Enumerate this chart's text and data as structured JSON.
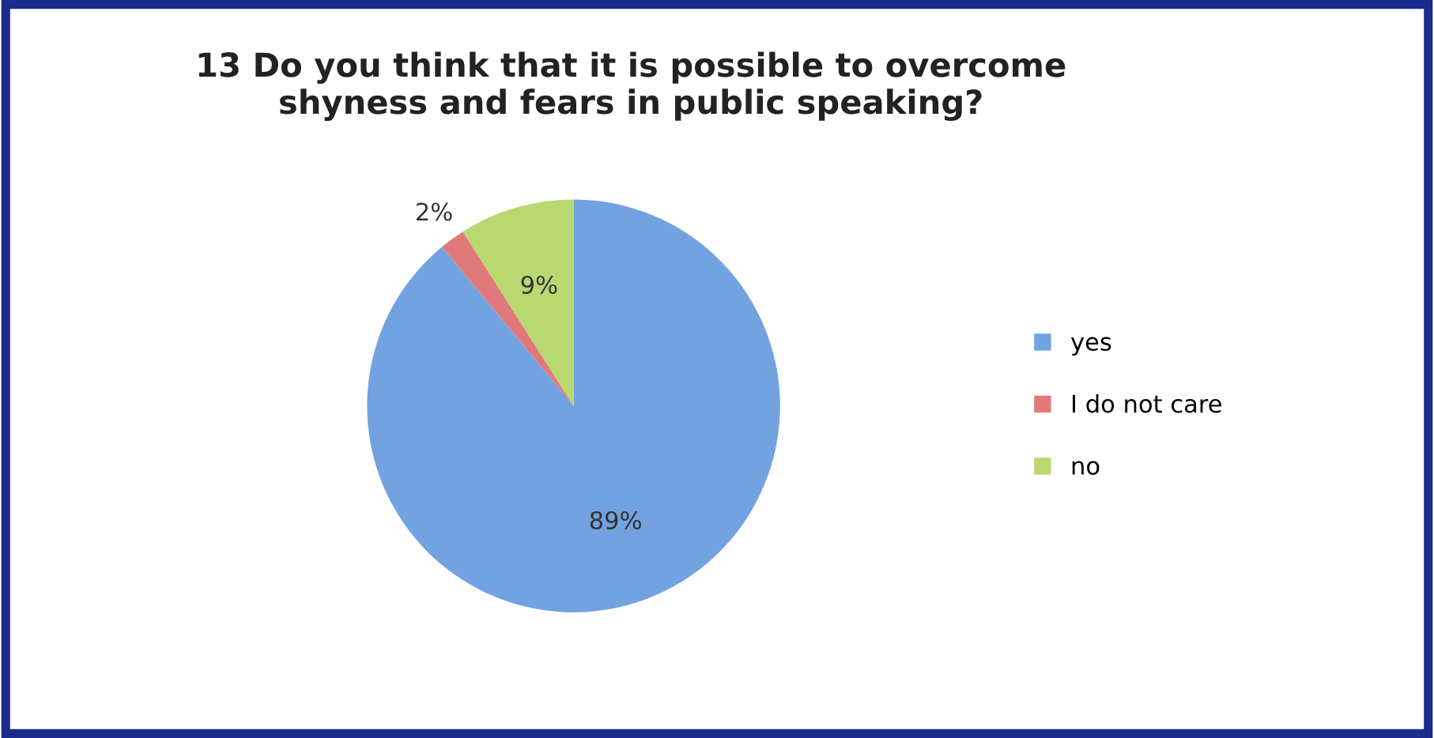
{
  "chart_data": {
    "type": "pie",
    "title": "13 Do you think that it is possible to overcome\nshyness and fears in public speaking?",
    "categories": [
      "yes",
      "I do not care",
      "no"
    ],
    "values": [
      89,
      2,
      9
    ],
    "colors": [
      "#73a2e0",
      "#e07a7a",
      "#b8d870"
    ],
    "value_labels": [
      "89%",
      "2%",
      "9%"
    ],
    "legend": "right"
  }
}
